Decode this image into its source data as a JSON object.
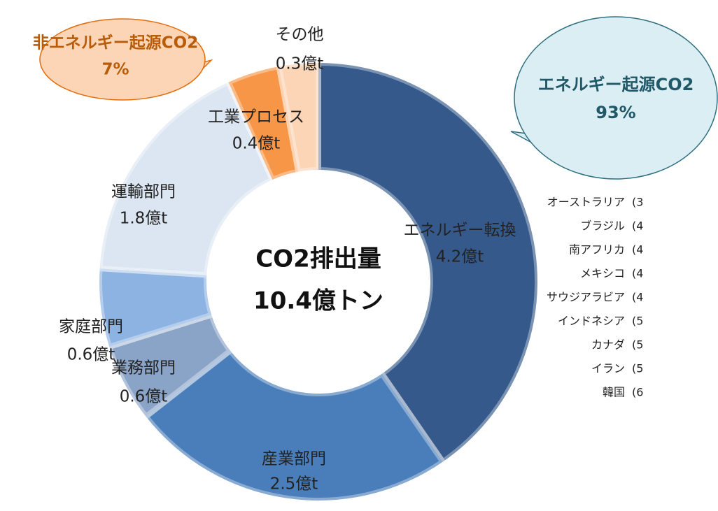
{
  "chart_data": {
    "type": "donut",
    "center_title": "CO2排出量",
    "center_value": "10.4億トン",
    "categories": [
      "エネルギー転換",
      "産業部門",
      "業務部門",
      "家庭部門",
      "運輸部門",
      "工業プロセス",
      "その他"
    ],
    "values": [
      4.2,
      2.5,
      0.6,
      0.6,
      1.8,
      0.4,
      0.3
    ],
    "value_labels": [
      "4.2億t",
      "2.5億t",
      "0.6億t",
      "0.6億t",
      "1.8億t",
      "0.4億t",
      "0.3億t"
    ],
    "colors": [
      "#35598a",
      "#4a7ebb",
      "#8aa4c8",
      "#8db3e2",
      "#dce6f2",
      "#f79646",
      "#fbd5b5"
    ],
    "callouts": [
      {
        "label": "エネルギー起源CO2",
        "value": "93%"
      },
      {
        "label": "非エネルギー起源CO2",
        "value": "7%"
      }
    ]
  },
  "side_list": [
    {
      "name": "オーストラリア",
      "value": "(3"
    },
    {
      "name": "ブラジル",
      "value": "(4"
    },
    {
      "name": "南アフリカ",
      "value": "(4"
    },
    {
      "name": "メキシコ",
      "value": "(4"
    },
    {
      "name": "サウジアラビア",
      "value": "(4"
    },
    {
      "name": "インドネシア",
      "value": "(5"
    },
    {
      "name": "カナダ",
      "value": "(5"
    },
    {
      "name": "イラン",
      "value": "(5"
    },
    {
      "name": "韓国",
      "value": "(6"
    }
  ]
}
